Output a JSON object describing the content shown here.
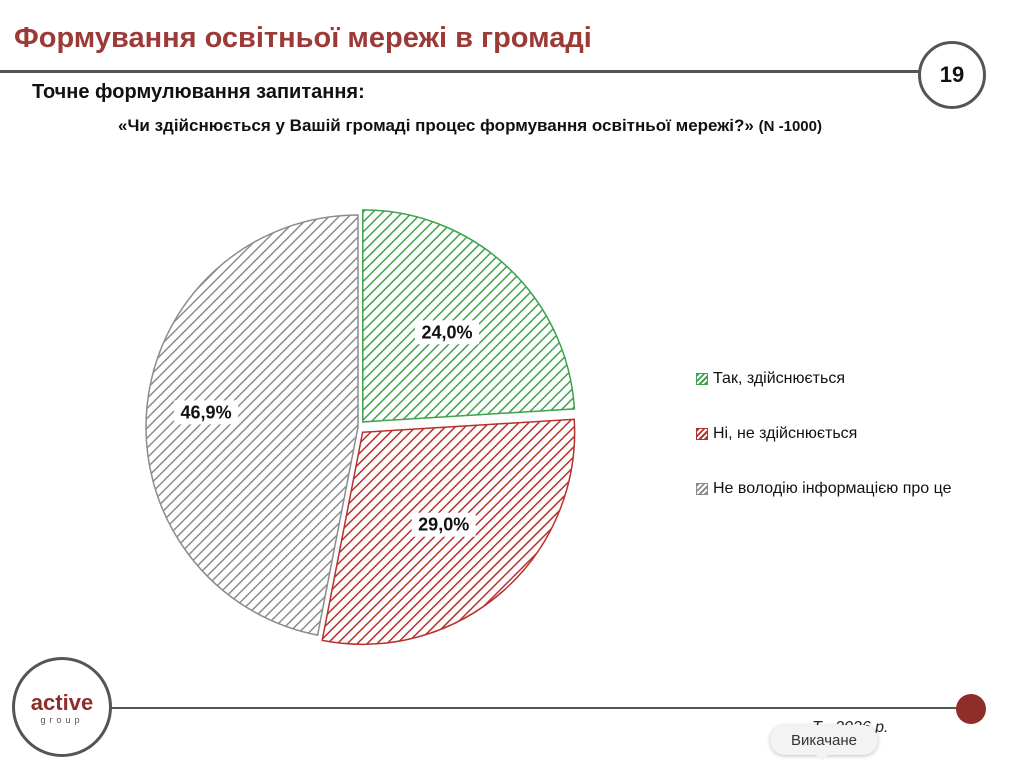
{
  "header": {
    "title": "Формування освітньої мережі в громаді",
    "page_number": "19"
  },
  "subtitle": "Точне формулювання запитання:",
  "question": {
    "text": "«Чи здійснюється у Вашій громаді процес формування освітньої мережі?»",
    "n_label": "(N -1000)"
  },
  "chart_data": {
    "type": "pie",
    "title": "",
    "categories": [
      "Так, здійснюється",
      "Ні, не здійснюється",
      "Не володію інформацією про це"
    ],
    "values": [
      24.0,
      29.0,
      46.9
    ],
    "labels": [
      "24,0%",
      "29,0%",
      "46,9%"
    ],
    "colors": [
      "#3fa34d",
      "#b8302d",
      "#8c8c8c"
    ],
    "fill_pattern": "diagonal-hatch",
    "legend_position": "right"
  },
  "footer": {
    "logo_word": "active",
    "logo_sub": "group",
    "date_text": "Т       . 2026 р.",
    "toast_text": "Викачане"
  }
}
